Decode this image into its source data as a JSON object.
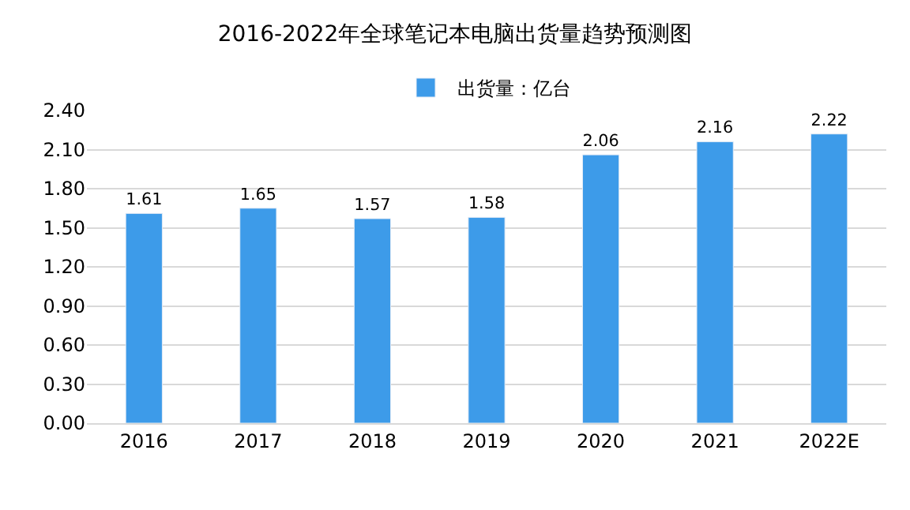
{
  "chart_data": {
    "type": "bar",
    "title": "2016-2022年全球笔记本电脑出货量趋势预测图",
    "categories": [
      "2016",
      "2017",
      "2018",
      "2019",
      "2020",
      "2021",
      "2022E"
    ],
    "series": [
      {
        "name": "出货量：亿台",
        "color": "#3d9be9",
        "values": [
          1.61,
          1.65,
          1.57,
          1.58,
          2.06,
          2.16,
          2.22
        ]
      }
    ],
    "ylim": [
      0,
      2.4
    ],
    "yticks": [
      {
        "value": 0,
        "label": "0.00"
      },
      {
        "value": 0.3,
        "label": "0.30"
      },
      {
        "value": 0.6,
        "label": "0.60"
      },
      {
        "value": 0.9,
        "label": "0.90"
      },
      {
        "value": 1.2,
        "label": "1.20"
      },
      {
        "value": 1.5,
        "label": "1.50"
      },
      {
        "value": 1.8,
        "label": "1.80"
      },
      {
        "value": 2.1,
        "label": "2.10"
      },
      {
        "value": 2.4,
        "label": "2.40"
      }
    ],
    "grid": "y",
    "legend": "top",
    "data_labels": true
  }
}
